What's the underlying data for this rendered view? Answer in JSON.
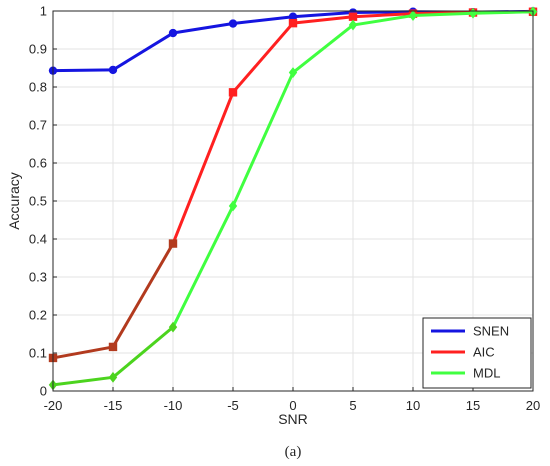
{
  "chart_data": {
    "type": "line",
    "title": "",
    "xlabel": "SNR",
    "ylabel": "Accuracy",
    "xlim": [
      -20,
      20
    ],
    "ylim": [
      0,
      1
    ],
    "x": [
      -20,
      -15,
      -10,
      -5,
      0,
      5,
      10,
      15,
      20
    ],
    "xticks": [
      "-20",
      "-15",
      "-10",
      "-5",
      "0",
      "5",
      "10",
      "15",
      "20"
    ],
    "yticks": [
      "0",
      "0.1",
      "0.2",
      "0.3",
      "0.4",
      "0.5",
      "0.6",
      "0.7",
      "0.8",
      "0.9",
      "1"
    ],
    "grid": true,
    "legend_position": "bottom-right",
    "series": [
      {
        "name": "SNEN",
        "color": "#1515e0",
        "marker": "circle",
        "values": [
          0.843,
          0.845,
          0.942,
          0.967,
          0.985,
          0.996,
          0.998,
          0.997,
          0.999
        ]
      },
      {
        "name": "AIC",
        "color": "#b23a1e",
        "color_high": "#ff2020",
        "marker": "square",
        "values": [
          0.087,
          0.116,
          0.388,
          0.786,
          0.968,
          0.985,
          0.993,
          0.996,
          0.998
        ]
      },
      {
        "name": "MDL",
        "color": "#4cd41e",
        "color_high": "#40ff40",
        "marker": "diamond",
        "values": [
          0.016,
          0.036,
          0.168,
          0.487,
          0.838,
          0.963,
          0.988,
          0.994,
          0.998
        ]
      }
    ]
  },
  "caption": "(a)"
}
